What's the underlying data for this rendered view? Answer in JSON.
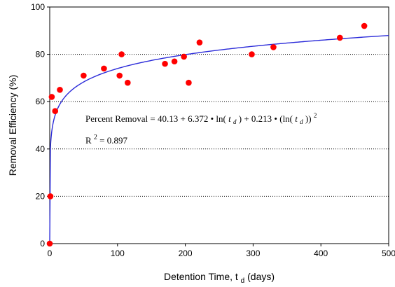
{
  "chart_data": {
    "type": "scatter",
    "xlabel_main": "Detention Time, t",
    "xlabel_sub": "d",
    "xlabel_unit": " (days)",
    "ylabel": "Removal Efficiency (%)",
    "xlim": [
      0,
      500
    ],
    "ylim": [
      0,
      100
    ],
    "x_ticks": [
      "0",
      "100",
      "200",
      "300",
      "400",
      "500"
    ],
    "y_ticks": [
      "0",
      "20",
      "40",
      "60",
      "80",
      "100"
    ],
    "grid": "horizontal dotted",
    "point_color": "#ff0000",
    "line_color": "#2b2bd9",
    "points": [
      {
        "x": 0,
        "y": 0
      },
      {
        "x": 1,
        "y": 20
      },
      {
        "x": 3,
        "y": 62
      },
      {
        "x": 8,
        "y": 56
      },
      {
        "x": 15,
        "y": 65
      },
      {
        "x": 50,
        "y": 71
      },
      {
        "x": 80,
        "y": 74
      },
      {
        "x": 103,
        "y": 71
      },
      {
        "x": 106,
        "y": 80
      },
      {
        "x": 115,
        "y": 68
      },
      {
        "x": 170,
        "y": 76
      },
      {
        "x": 184,
        "y": 77
      },
      {
        "x": 198,
        "y": 79
      },
      {
        "x": 205,
        "y": 68
      },
      {
        "x": 221,
        "y": 85
      },
      {
        "x": 298,
        "y": 80
      },
      {
        "x": 330,
        "y": 83
      },
      {
        "x": 428,
        "y": 87
      },
      {
        "x": 464,
        "y": 92
      }
    ],
    "fit": {
      "a": 40.13,
      "b": 6.372,
      "c": 0.213,
      "x_start": 1
    },
    "annotations": {
      "equation_prefix": "Percent Removal = 40.13 + 6.372",
      "eq_bullet": "•",
      "eq_ln": "ln(",
      "eq_t": "t",
      "eq_d": "d",
      "eq_close": ")",
      "eq_plus": " + 0.213",
      "eq_paren_ln": "(ln(",
      "eq_close2": "))",
      "eq_sq": "2",
      "r2_base": "R",
      "r2_sup": "2",
      "r2_value": " = 0.897"
    }
  }
}
